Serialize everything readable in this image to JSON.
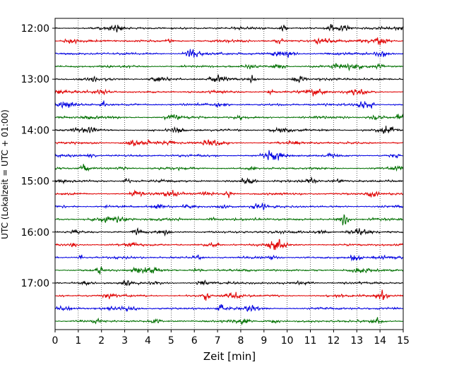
{
  "chart_data": {
    "type": "line",
    "title": "",
    "xlabel": "Zeit  [min]",
    "ylabel": "UTC (Lokalzeit = UTC + 01:00)",
    "xlim": [
      0,
      15
    ],
    "x_ticks": [
      "0",
      "1",
      "2",
      "3",
      "4",
      "5",
      "6",
      "7",
      "8",
      "9",
      "10",
      "11",
      "12",
      "13",
      "14",
      "15"
    ],
    "y_ticks": [
      "12:00",
      "13:00",
      "14:00",
      "15:00",
      "16:00",
      "17:00"
    ],
    "grid": "vertical dotted lines at each minute",
    "trace_start_times": [
      "12:00",
      "12:15",
      "12:30",
      "12:45",
      "13:00",
      "13:15",
      "13:30",
      "13:45",
      "14:00",
      "14:15",
      "14:30",
      "14:45",
      "15:00",
      "15:15",
      "15:30",
      "15:45",
      "16:00",
      "16:15",
      "16:30",
      "16:45",
      "17:00",
      "17:15",
      "17:30",
      "17:45"
    ],
    "trace_colors": [
      "#000000",
      "#e00000",
      "#0000e0",
      "#007000"
    ]
  }
}
